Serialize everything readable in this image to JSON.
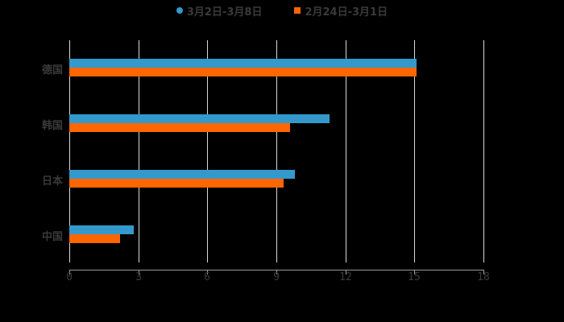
{
  "chart_data": {
    "type": "bar",
    "orientation": "horizontal",
    "title": "",
    "xlabel": "",
    "ylabel": "",
    "categories": [
      "德国",
      "韩国",
      "日本",
      "中国"
    ],
    "series": [
      {
        "name": "3月2日-3月8日",
        "color": "#3399cc",
        "values": [
          15.1,
          11.3,
          9.8,
          2.8
        ]
      },
      {
        "name": "2月24日-3月1日",
        "color": "#ff6600",
        "values": [
          15.1,
          9.6,
          9.3,
          2.2
        ]
      }
    ],
    "xlim": [
      0,
      18
    ],
    "xticks": [
      "0",
      "3",
      "6",
      "9",
      "12",
      "15",
      "18"
    ],
    "grid": true,
    "legend_position": "top"
  },
  "legend": [
    {
      "label": "3月2日-3月8日",
      "marker": "circle"
    },
    {
      "label": "2月24日-3月1日",
      "marker": "square"
    }
  ]
}
